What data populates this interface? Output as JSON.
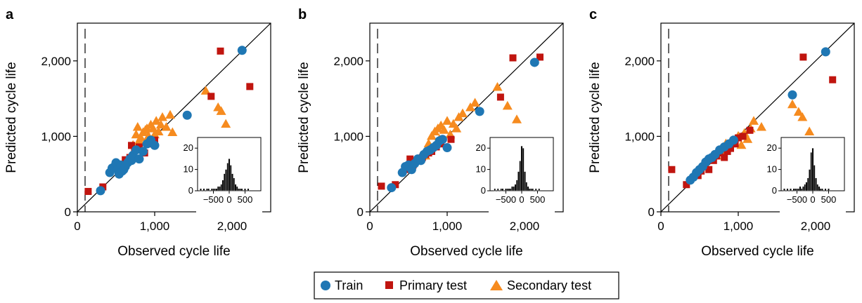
{
  "colors": {
    "train": "#1f77b4",
    "primary": "#c0150f",
    "secondary": "#f68b1f",
    "axis": "#000000"
  },
  "legend": {
    "train_label": "Train",
    "primary_label": "Primary test",
    "secondary_label": "Secondary test",
    "train_icon": "blue-circle-marker",
    "primary_icon": "red-square-marker",
    "secondary_icon": "orange-triangle-marker"
  },
  "chart_data": [
    {
      "type": "scatter",
      "panel_label": "a",
      "xlabel": "Observed cycle life",
      "ylabel": "Predicted cycle life",
      "xlim": [
        0,
        2500
      ],
      "ylim": [
        0,
        2500
      ],
      "xticks": [
        0,
        1000,
        2000
      ],
      "xtick_labels": [
        "0",
        "1,000",
        "2,000"
      ],
      "yticks": [
        0,
        1000,
        2000
      ],
      "ytick_labels": [
        "0",
        "1,000",
        "2,000"
      ],
      "reference_line": "y = x",
      "threshold_x": 100,
      "series": [
        {
          "name": "Train",
          "marker": "circle",
          "x": [
            300,
            420,
            450,
            480,
            500,
            520,
            540,
            560,
            580,
            600,
            620,
            650,
            680,
            700,
            720,
            760,
            800,
            850,
            900,
            950,
            1000,
            1420,
            2130
          ],
          "y": [
            280,
            520,
            580,
            600,
            650,
            560,
            500,
            620,
            540,
            560,
            600,
            650,
            700,
            680,
            750,
            820,
            700,
            800,
            900,
            950,
            880,
            1280,
            2140
          ]
        },
        {
          "name": "Primary test",
          "marker": "square",
          "x": [
            140,
            330,
            470,
            500,
            560,
            620,
            680,
            700,
            740,
            800,
            870,
            940,
            1000,
            1730,
            1850,
            2230
          ],
          "y": [
            270,
            330,
            580,
            620,
            600,
            690,
            720,
            880,
            820,
            860,
            780,
            900,
            950,
            1530,
            2130,
            1660
          ]
        },
        {
          "name": "Secondary test",
          "marker": "triangle",
          "x": [
            680,
            720,
            760,
            780,
            800,
            820,
            850,
            880,
            900,
            920,
            950,
            980,
            1000,
            1020,
            1050,
            1080,
            1100,
            1150,
            1200,
            1230,
            1660,
            1820,
            1860,
            1920
          ],
          "y": [
            720,
            880,
            1020,
            1120,
            940,
            980,
            1050,
            1080,
            1100,
            1000,
            1150,
            1100,
            1020,
            1200,
            1060,
            1150,
            1250,
            1120,
            1280,
            1050,
            1600,
            1380,
            1330,
            1160
          ]
        }
      ],
      "inset": {
        "type": "histogram",
        "xlim": [
          -1000,
          1000
        ],
        "ylim": [
          0,
          25
        ],
        "xticks": [
          -500,
          0,
          500
        ],
        "xtick_labels": [
          "−500",
          "0",
          "500"
        ],
        "yticks": [
          0,
          10,
          20
        ],
        "ytick_labels": [
          "0",
          "10",
          "20"
        ],
        "bins_center": [
          -900,
          -850,
          -800,
          -750,
          -700,
          -650,
          -600,
          -550,
          -500,
          -450,
          -400,
          -350,
          -300,
          -250,
          -200,
          -150,
          -100,
          -50,
          0,
          50,
          100,
          150,
          200,
          250,
          300,
          350,
          400,
          450,
          500,
          550,
          600
        ],
        "counts": [
          1,
          0,
          1,
          0,
          1,
          1,
          0,
          1,
          1,
          1,
          1,
          2,
          2,
          3,
          5,
          8,
          10,
          13,
          15,
          12,
          8,
          6,
          3,
          2,
          1,
          1,
          1,
          0,
          1,
          0,
          1
        ]
      }
    },
    {
      "type": "scatter",
      "panel_label": "b",
      "xlabel": "Observed cycle life",
      "ylabel": "Predicted cycle life",
      "xlim": [
        0,
        2500
      ],
      "ylim": [
        0,
        2500
      ],
      "xticks": [
        0,
        1000,
        2000
      ],
      "xtick_labels": [
        "0",
        "1,000",
        "2,000"
      ],
      "yticks": [
        0,
        1000,
        2000
      ],
      "ytick_labels": [
        "0",
        "1,000",
        "2,000"
      ],
      "reference_line": "y = x",
      "threshold_x": 100,
      "series": [
        {
          "name": "Train",
          "marker": "circle",
          "x": [
            280,
            420,
            460,
            500,
            540,
            580,
            620,
            660,
            700,
            740,
            780,
            820,
            860,
            900,
            940,
            1000,
            1420,
            2130
          ],
          "y": [
            320,
            520,
            600,
            620,
            560,
            640,
            700,
            680,
            760,
            800,
            820,
            850,
            880,
            940,
            960,
            850,
            1330,
            1980
          ]
        },
        {
          "name": "Primary test",
          "marker": "square",
          "x": [
            150,
            330,
            480,
            520,
            560,
            620,
            680,
            720,
            760,
            800,
            860,
            920,
            1050,
            1690,
            1850,
            2200
          ],
          "y": [
            340,
            360,
            560,
            700,
            620,
            680,
            720,
            760,
            780,
            800,
            860,
            900,
            960,
            1520,
            2040,
            2050
          ]
        },
        {
          "name": "Secondary test",
          "marker": "triangle",
          "x": [
            720,
            760,
            800,
            840,
            880,
            900,
            920,
            960,
            1000,
            1040,
            1080,
            1120,
            1150,
            1200,
            1300,
            1360,
            1650,
            1780,
            1900
          ],
          "y": [
            740,
            900,
            1000,
            1060,
            1100,
            960,
            1140,
            1080,
            1200,
            1020,
            1160,
            1100,
            1250,
            1300,
            1380,
            1440,
            1650,
            1400,
            1220
          ]
        }
      ],
      "inset": {
        "type": "histogram",
        "xlim": [
          -1000,
          1000
        ],
        "ylim": [
          0,
          25
        ],
        "xticks": [
          -500,
          0,
          500
        ],
        "xtick_labels": [
          "−500",
          "0",
          "500"
        ],
        "yticks": [
          0,
          10,
          20
        ],
        "ytick_labels": [
          "0",
          "10",
          "20"
        ],
        "bins_center": [
          -900,
          -850,
          -800,
          -750,
          -700,
          -650,
          -600,
          -550,
          -500,
          -450,
          -400,
          -350,
          -300,
          -250,
          -200,
          -150,
          -100,
          -50,
          0,
          50,
          100,
          150,
          200,
          250,
          300,
          350,
          400,
          450,
          500,
          550,
          600
        ],
        "counts": [
          0,
          1,
          0,
          1,
          0,
          1,
          1,
          0,
          1,
          1,
          1,
          1,
          2,
          2,
          3,
          5,
          9,
          14,
          21,
          20,
          9,
          4,
          2,
          1,
          1,
          1,
          0,
          1,
          0,
          1,
          0
        ]
      }
    },
    {
      "type": "scatter",
      "panel_label": "c",
      "xlabel": "Observed cycle life",
      "ylabel": "Predicted cycle life",
      "xlim": [
        0,
        2500
      ],
      "ylim": [
        0,
        2500
      ],
      "xticks": [
        0,
        1000,
        2000
      ],
      "xtick_labels": [
        "0",
        "1,000",
        "2,000"
      ],
      "yticks": [
        0,
        1000,
        2000
      ],
      "ytick_labels": [
        "0",
        "1,000",
        "2,000"
      ],
      "reference_line": "y = x",
      "threshold_x": 100,
      "series": [
        {
          "name": "Train",
          "marker": "circle",
          "x": [
            380,
            420,
            460,
            500,
            540,
            580,
            620,
            660,
            700,
            760,
            820,
            880,
            940,
            1700,
            2130
          ],
          "y": [
            420,
            460,
            520,
            560,
            600,
            660,
            700,
            720,
            760,
            820,
            860,
            900,
            950,
            1550,
            2120
          ]
        },
        {
          "name": "Primary test",
          "marker": "square",
          "x": [
            140,
            330,
            480,
            520,
            560,
            620,
            680,
            720,
            760,
            820,
            860,
            900,
            960,
            1000,
            1060,
            1150,
            1840,
            2220
          ],
          "y": [
            560,
            360,
            480,
            540,
            600,
            560,
            680,
            740,
            780,
            720,
            800,
            840,
            900,
            980,
            1000,
            1080,
            2050,
            1750
          ]
        },
        {
          "name": "Secondary test",
          "marker": "triangle",
          "x": [
            720,
            780,
            840,
            880,
            920,
            960,
            1000,
            1040,
            1080,
            1120,
            1160,
            1200,
            1300,
            1700,
            1780,
            1830,
            1920
          ],
          "y": [
            740,
            800,
            900,
            860,
            940,
            900,
            1000,
            880,
            1040,
            960,
            1100,
            1200,
            1120,
            1420,
            1320,
            1250,
            1060
          ]
        }
      ],
      "inset": {
        "type": "histogram",
        "xlim": [
          -1000,
          1000
        ],
        "ylim": [
          0,
          25
        ],
        "xticks": [
          -500,
          0,
          500
        ],
        "xtick_labels": [
          "−500",
          "0",
          "500"
        ],
        "yticks": [
          0,
          10,
          20
        ],
        "ytick_labels": [
          "0",
          "10",
          "20"
        ],
        "bins_center": [
          -900,
          -850,
          -800,
          -750,
          -700,
          -650,
          -600,
          -550,
          -500,
          -450,
          -400,
          -350,
          -300,
          -250,
          -200,
          -150,
          -100,
          -50,
          0,
          50,
          100,
          150,
          200,
          250,
          300,
          350,
          400,
          450,
          500,
          550,
          600
        ],
        "counts": [
          1,
          0,
          1,
          0,
          1,
          0,
          1,
          1,
          1,
          1,
          2,
          1,
          2,
          3,
          4,
          6,
          10,
          18,
          20,
          12,
          6,
          3,
          2,
          1,
          1,
          0,
          1,
          0,
          1,
          0,
          0
        ]
      }
    }
  ]
}
